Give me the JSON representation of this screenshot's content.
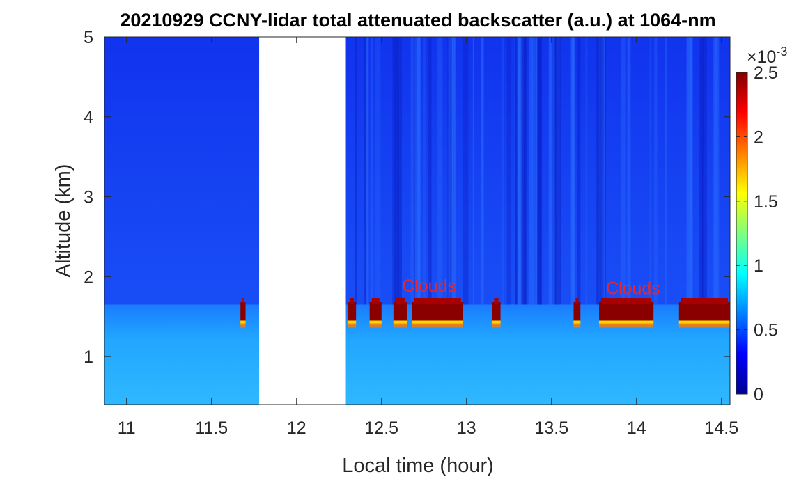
{
  "chart_data": {
    "type": "heatmap",
    "title": "20210929 CCNY-lidar total attenuated backscatter (a.u.) at 1064-nm",
    "xlabel": "Local time (hour)",
    "ylabel": "Altitude (km)",
    "xlim": [
      10.87,
      14.55
    ],
    "ylim": [
      0.4,
      5
    ],
    "x_ticks": [
      11,
      11.5,
      12,
      12.5,
      13,
      13.5,
      14,
      14.5
    ],
    "x_tick_labels": [
      "11",
      "11.5",
      "12",
      "12.5",
      "13",
      "13.5",
      "14",
      "14.5"
    ],
    "y_ticks": [
      1,
      2,
      3,
      4,
      5
    ],
    "y_tick_labels": [
      "1",
      "2",
      "3",
      "4",
      "5"
    ],
    "colorbar": {
      "colormap": "jet",
      "range": [
        0,
        0.0025
      ],
      "ticks": [
        0,
        0.5,
        1,
        1.5,
        2,
        2.5
      ],
      "tick_labels": [
        "0",
        "0.5",
        "1",
        "1.5",
        "2",
        "2.5"
      ],
      "exponent_label": "×10",
      "exponent_power": "-3"
    },
    "data_gap": [
      11.78,
      12.29
    ],
    "boundary_layer_top_km": 1.65,
    "cloud_layer": {
      "bottom_km": 1.45,
      "top_km": 1.75,
      "segments": [
        [
          11.67,
          11.7
        ],
        [
          12.3,
          12.35
        ],
        [
          12.43,
          12.5
        ],
        [
          12.57,
          12.65
        ],
        [
          12.68,
          12.98
        ],
        [
          13.15,
          13.2
        ],
        [
          13.63,
          13.67
        ],
        [
          13.78,
          14.1
        ],
        [
          14.25,
          14.55
        ]
      ]
    },
    "annotations": [
      {
        "text": "Clouds",
        "x": 12.78,
        "y": 1.88,
        "color": "#e8262b"
      },
      {
        "text": "Clouds",
        "x": 13.98,
        "y": 1.85,
        "color": "#e8262b"
      }
    ]
  }
}
